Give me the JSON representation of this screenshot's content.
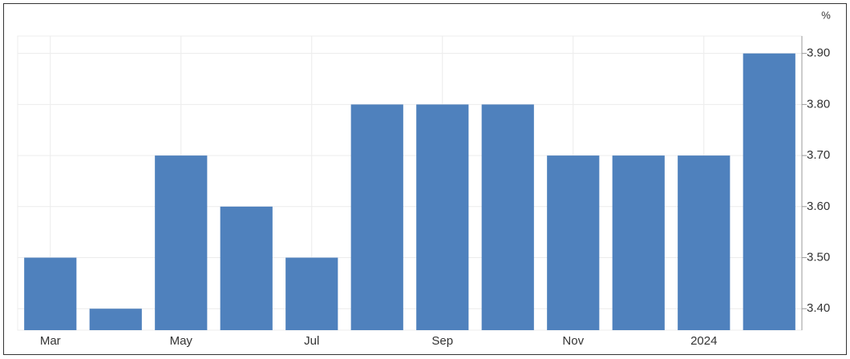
{
  "chart_data": {
    "type": "bar",
    "unit": "%",
    "categories": [
      "Mar",
      null,
      "May",
      null,
      "Jul",
      null,
      "Sep",
      null,
      "Nov",
      null,
      "2024",
      null
    ],
    "values": [
      3.5,
      3.4,
      3.7,
      3.6,
      3.5,
      3.8,
      3.8,
      3.8,
      3.7,
      3.7,
      3.7,
      3.9
    ],
    "color": "#4f81bd",
    "ylim": [
      3.358,
      3.934
    ],
    "yticks": [
      {
        "value": 3.4,
        "label": "3.40"
      },
      {
        "value": 3.5,
        "label": "3.50"
      },
      {
        "value": 3.6,
        "label": "3.60"
      },
      {
        "value": 3.7,
        "label": "3.70"
      },
      {
        "value": 3.8,
        "label": "3.80"
      },
      {
        "value": 3.9,
        "label": "3.90"
      }
    ],
    "grid": true
  }
}
